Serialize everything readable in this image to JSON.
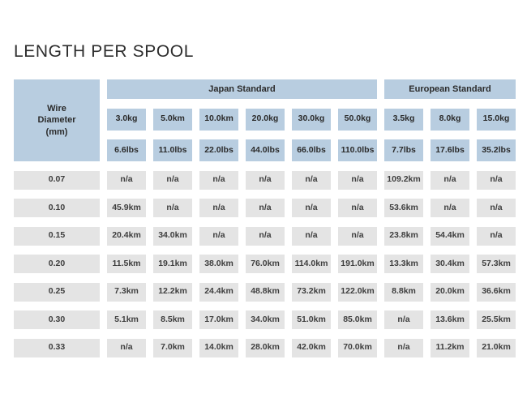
{
  "title": "LENGTH PER SPOOL",
  "colors": {
    "header_bg": "#b8cde0",
    "data_cell_bg": "#e4e4e4",
    "header_text": "#2b2b2b",
    "data_text": "#3e3e3e",
    "title_text": "#2e2e2e",
    "page_bg": "#ffffff"
  },
  "chart_data": {
    "type": "table",
    "title": "LENGTH PER SPOOL",
    "corner_header_lines": [
      "Wire",
      "Diameter",
      "(mm)"
    ],
    "column_groups": [
      {
        "label": "Japan Standard",
        "columns": 6
      },
      {
        "label": "European Standard",
        "columns": 3
      }
    ],
    "columns_kg": [
      "3.0kg",
      "5.0km",
      "10.0km",
      "20.0kg",
      "30.0kg",
      "50.0kg",
      "3.5kg",
      "8.0kg",
      "15.0kg"
    ],
    "columns_lbs": [
      "6.6lbs",
      "11.0lbs",
      "22.0lbs",
      "44.0lbs",
      "66.0lbs",
      "110.0lbs",
      "7.7lbs",
      "17.6lbs",
      "35.2lbs"
    ],
    "rows": [
      {
        "diameter": "0.07",
        "values": [
          "n/a",
          "n/a",
          "n/a",
          "n/a",
          "n/a",
          "n/a",
          "109.2km",
          "n/a",
          "n/a"
        ]
      },
      {
        "diameter": "0.10",
        "values": [
          "45.9km",
          "n/a",
          "n/a",
          "n/a",
          "n/a",
          "n/a",
          "53.6km",
          "n/a",
          "n/a"
        ]
      },
      {
        "diameter": "0.15",
        "values": [
          "20.4km",
          "34.0km",
          "n/a",
          "n/a",
          "n/a",
          "n/a",
          "23.8km",
          "54.4km",
          "n/a"
        ]
      },
      {
        "diameter": "0.20",
        "values": [
          "11.5km",
          "19.1km",
          "38.0km",
          "76.0km",
          "114.0km",
          "191.0km",
          "13.3km",
          "30.4km",
          "57.3km"
        ]
      },
      {
        "diameter": "0.25",
        "values": [
          "7.3km",
          "12.2km",
          "24.4km",
          "48.8km",
          "73.2km",
          "122.0km",
          "8.8km",
          "20.0km",
          "36.6km"
        ]
      },
      {
        "diameter": "0.30",
        "values": [
          "5.1km",
          "8.5km",
          "17.0km",
          "34.0km",
          "51.0km",
          "85.0km",
          "n/a",
          "13.6km",
          "25.5km"
        ]
      },
      {
        "diameter": "0.33",
        "values": [
          "n/a",
          "7.0km",
          "14.0km",
          "28.0km",
          "42.0km",
          "70.0km",
          "n/a",
          "11.2km",
          "21.0km"
        ]
      }
    ]
  }
}
